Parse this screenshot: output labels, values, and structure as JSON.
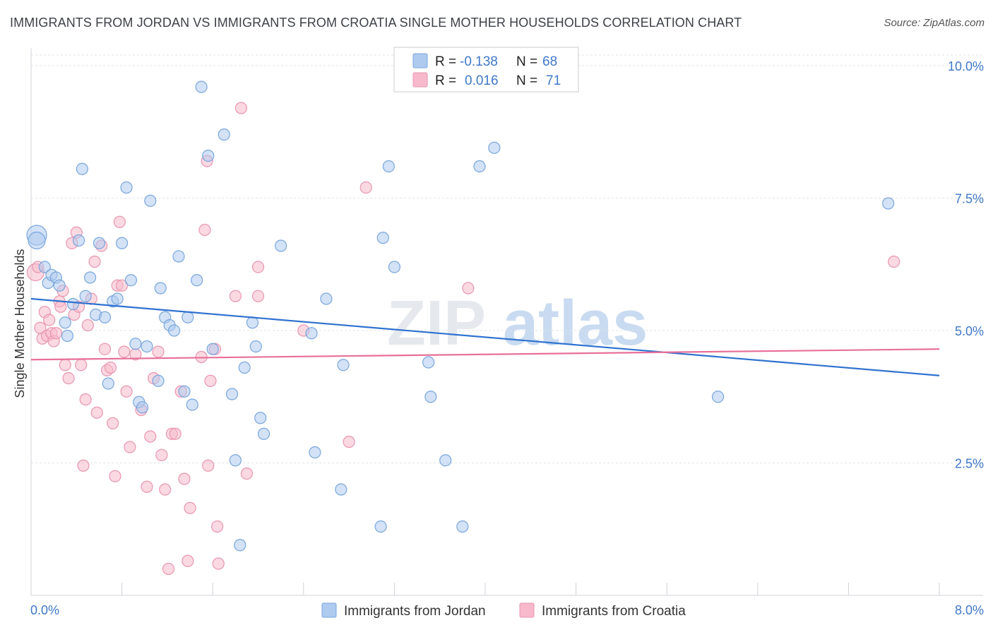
{
  "header": {
    "title": "IMMIGRANTS FROM JORDAN VS IMMIGRANTS FROM CROATIA SINGLE MOTHER HOUSEHOLDS CORRELATION CHART",
    "source": "Source: ZipAtlas.com"
  },
  "watermark": {
    "zip": "ZIP",
    "atlas": "atlas"
  },
  "colors": {
    "jordan_fill": "#aecbef",
    "jordan_stroke": "#7aa6dc",
    "jordan_line": "#2f72d0",
    "croatia_fill": "#f7b9cb",
    "croatia_stroke": "#e896b1",
    "croatia_line": "#e8709a",
    "axis_text": "#3f78c9",
    "grid": "#dfe3e8"
  },
  "stats_box": {
    "rows": [
      {
        "series": "jordan",
        "r_label": "R =",
        "r_value": "-0.138",
        "n_label": "N =",
        "n_value": "68"
      },
      {
        "series": "croatia",
        "r_label": "R =",
        "r_value": "0.016",
        "n_label": "N =",
        "n_value": "71"
      }
    ]
  },
  "chart_data": {
    "type": "scatter",
    "title": "IMMIGRANTS FROM JORDAN VS IMMIGRANTS FROM CROATIA SINGLE MOTHER HOUSEHOLDS CORRELATION CHART",
    "xlabel": "",
    "ylabel": "Single Mother Households",
    "xlim": [
      0,
      8
    ],
    "ylim": [
      0,
      10.2
    ],
    "x_tick_labels": [
      {
        "value": 0,
        "label": "0.0%"
      },
      {
        "value": 8,
        "label": "8.0%"
      }
    ],
    "y_ticks": [
      {
        "value": 2.5,
        "label": "2.5%"
      },
      {
        "value": 5.0,
        "label": "5.0%"
      },
      {
        "value": 7.5,
        "label": "7.5%"
      },
      {
        "value": 10.0,
        "label": "10.0%"
      }
    ],
    "legend": [
      "Immigrants from Jordan",
      "Immigrants from Croatia"
    ],
    "legend_position": "bottom-center",
    "series": [
      {
        "name": "Immigrants from Jordan",
        "key": "jordan",
        "r": -0.138,
        "n": 68,
        "trend": [
          [
            0.0,
            5.6
          ],
          [
            8.0,
            4.15
          ]
        ],
        "points": [
          [
            0.05,
            6.8
          ],
          [
            0.05,
            6.7
          ],
          [
            0.12,
            6.2
          ],
          [
            0.15,
            5.9
          ],
          [
            0.18,
            6.05
          ],
          [
            0.22,
            6.0
          ],
          [
            0.25,
            5.85
          ],
          [
            0.3,
            5.15
          ],
          [
            0.32,
            4.9
          ],
          [
            0.37,
            5.5
          ],
          [
            0.42,
            6.7
          ],
          [
            0.45,
            8.05
          ],
          [
            0.48,
            5.65
          ],
          [
            0.52,
            6.0
          ],
          [
            0.57,
            5.3
          ],
          [
            0.6,
            6.65
          ],
          [
            0.65,
            5.25
          ],
          [
            0.68,
            4.0
          ],
          [
            0.72,
            5.55
          ],
          [
            0.76,
            5.6
          ],
          [
            0.8,
            6.65
          ],
          [
            0.84,
            7.7
          ],
          [
            0.88,
            5.95
          ],
          [
            0.92,
            4.75
          ],
          [
            0.95,
            3.65
          ],
          [
            0.98,
            3.55
          ],
          [
            1.02,
            4.7
          ],
          [
            1.05,
            7.45
          ],
          [
            1.12,
            4.05
          ],
          [
            1.14,
            5.8
          ],
          [
            1.18,
            5.25
          ],
          [
            1.22,
            5.1
          ],
          [
            1.26,
            5.0
          ],
          [
            1.3,
            6.4
          ],
          [
            1.35,
            3.85
          ],
          [
            1.38,
            5.25
          ],
          [
            1.42,
            3.6
          ],
          [
            1.46,
            5.95
          ],
          [
            1.5,
            9.6
          ],
          [
            1.56,
            8.3
          ],
          [
            1.6,
            4.65
          ],
          [
            1.7,
            8.7
          ],
          [
            1.77,
            3.8
          ],
          [
            1.8,
            2.55
          ],
          [
            1.84,
            0.95
          ],
          [
            1.88,
            4.3
          ],
          [
            1.95,
            5.15
          ],
          [
            1.98,
            4.7
          ],
          [
            2.02,
            3.35
          ],
          [
            2.05,
            3.05
          ],
          [
            2.2,
            6.6
          ],
          [
            2.47,
            4.95
          ],
          [
            2.5,
            2.7
          ],
          [
            2.6,
            5.6
          ],
          [
            2.73,
            2.0
          ],
          [
            2.75,
            4.35
          ],
          [
            3.08,
            1.3
          ],
          [
            3.1,
            6.75
          ],
          [
            3.15,
            8.1
          ],
          [
            3.2,
            6.2
          ],
          [
            3.5,
            4.4
          ],
          [
            3.52,
            3.75
          ],
          [
            3.65,
            2.55
          ],
          [
            3.8,
            1.3
          ],
          [
            3.95,
            8.1
          ],
          [
            4.08,
            8.45
          ],
          [
            6.05,
            3.75
          ],
          [
            7.55,
            7.4
          ]
        ]
      },
      {
        "name": "Immigrants from Croatia",
        "key": "croatia",
        "r": 0.016,
        "n": 71,
        "trend": [
          [
            0.0,
            4.45
          ],
          [
            8.0,
            4.65
          ]
        ],
        "points": [
          [
            0.04,
            6.1
          ],
          [
            0.06,
            6.2
          ],
          [
            0.08,
            5.05
          ],
          [
            0.1,
            4.85
          ],
          [
            0.12,
            5.35
          ],
          [
            0.14,
            4.9
          ],
          [
            0.16,
            5.2
          ],
          [
            0.18,
            4.95
          ],
          [
            0.2,
            4.8
          ],
          [
            0.22,
            4.95
          ],
          [
            0.25,
            5.55
          ],
          [
            0.28,
            5.75
          ],
          [
            0.3,
            4.35
          ],
          [
            0.33,
            4.1
          ],
          [
            0.36,
            6.65
          ],
          [
            0.38,
            5.3
          ],
          [
            0.4,
            6.85
          ],
          [
            0.42,
            5.45
          ],
          [
            0.44,
            4.35
          ],
          [
            0.46,
            2.45
          ],
          [
            0.48,
            3.7
          ],
          [
            0.5,
            5.1
          ],
          [
            0.53,
            5.6
          ],
          [
            0.56,
            6.3
          ],
          [
            0.58,
            3.45
          ],
          [
            0.62,
            6.6
          ],
          [
            0.65,
            4.65
          ],
          [
            0.67,
            4.25
          ],
          [
            0.7,
            4.3
          ],
          [
            0.72,
            3.25
          ],
          [
            0.74,
            2.25
          ],
          [
            0.76,
            5.85
          ],
          [
            0.78,
            7.05
          ],
          [
            0.8,
            5.85
          ],
          [
            0.82,
            4.6
          ],
          [
            0.84,
            3.85
          ],
          [
            0.87,
            2.8
          ],
          [
            0.92,
            4.55
          ],
          [
            0.97,
            3.5
          ],
          [
            1.02,
            2.05
          ],
          [
            1.05,
            3.0
          ],
          [
            1.08,
            4.1
          ],
          [
            1.12,
            4.6
          ],
          [
            1.15,
            2.65
          ],
          [
            1.18,
            2.0
          ],
          [
            1.21,
            0.5
          ],
          [
            1.24,
            3.05
          ],
          [
            1.27,
            3.05
          ],
          [
            1.32,
            3.85
          ],
          [
            1.35,
            2.2
          ],
          [
            1.38,
            0.65
          ],
          [
            1.4,
            1.65
          ],
          [
            1.5,
            4.5
          ],
          [
            1.53,
            6.9
          ],
          [
            1.55,
            8.2
          ],
          [
            1.56,
            2.45
          ],
          [
            1.58,
            4.05
          ],
          [
            1.62,
            4.65
          ],
          [
            1.64,
            1.3
          ],
          [
            1.65,
            0.6
          ],
          [
            1.85,
            9.2
          ],
          [
            1.9,
            2.3
          ],
          [
            2.0,
            6.2
          ],
          [
            2.0,
            5.65
          ],
          [
            2.4,
            5.0
          ],
          [
            2.8,
            2.9
          ],
          [
            2.95,
            7.7
          ],
          [
            3.85,
            5.8
          ],
          [
            7.6,
            6.3
          ],
          [
            1.8,
            5.65
          ],
          [
            0.26,
            5.45
          ]
        ]
      }
    ]
  }
}
